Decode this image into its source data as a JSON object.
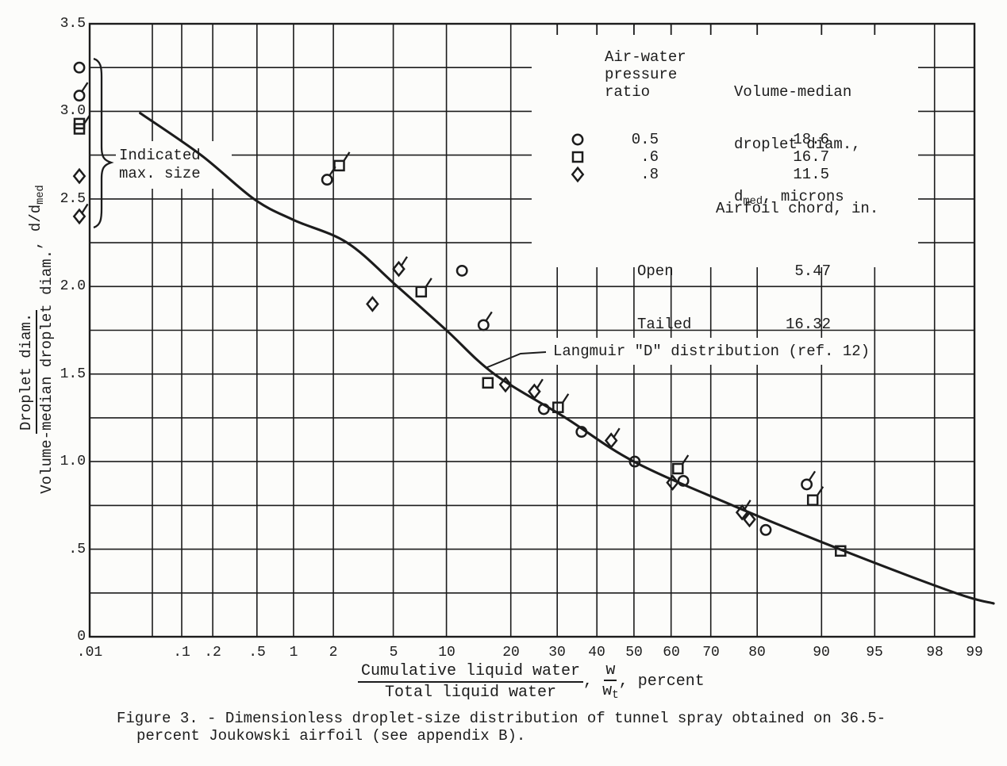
{
  "page": {
    "background": "#fcfcfa",
    "ink": "#1c1c1c"
  },
  "chart_data": {
    "type": "scatter",
    "title": "Figure 3. - Dimensionless droplet-size distribution of tunnel spray obtained on 36.5-percent Joukowski airfoil (see appendix B).",
    "x_axis": {
      "scale": "normal-probability",
      "unit": "percent",
      "min": 0.01,
      "max": 99,
      "label_numerator": "Cumulative liquid water",
      "label_denominator": "Total liquid water",
      "label_symbol_numerator": "w",
      "label_symbol_denominator_base": "w",
      "label_symbol_denominator_sub": "t",
      "label_suffix": ", percent",
      "comma": ",",
      "tick_percents": [
        0.01,
        0.1,
        0.2,
        0.5,
        1,
        2,
        5,
        10,
        20,
        30,
        40,
        50,
        60,
        70,
        80,
        90,
        95,
        98,
        99
      ],
      "tick_labels": [
        ".01",
        ".1",
        ".2",
        ".5",
        "1",
        "2",
        "5",
        "10",
        "20",
        "30",
        "40",
        "50",
        "60",
        "70",
        "80",
        "90",
        "95",
        "98",
        "99"
      ],
      "gridline_percents": [
        0.01,
        0.05,
        0.1,
        0.2,
        0.5,
        1,
        2,
        5,
        10,
        20,
        30,
        40,
        50,
        60,
        70,
        80,
        90,
        95,
        98,
        99
      ]
    },
    "y_axis": {
      "min": 0,
      "max": 3.5,
      "gridline_step": 0.25,
      "label_numerator": "Droplet diam.",
      "label_denominator": "Volume-median droplet diam.",
      "label_suffix_base": ", d/d",
      "label_suffix_sub": "med",
      "tick_values": [
        3.5,
        3.0,
        2.5,
        2.0,
        1.5,
        1.0,
        0.5,
        0
      ],
      "tick_labels": [
        "3.5",
        "3.0",
        "2.5",
        "2.0",
        "1.5",
        "1.0",
        ".5",
        "0"
      ]
    },
    "series": [
      {
        "name": "pressure ratio 0.5, open symbols (5.47 in. chord)",
        "symbol": "circle",
        "tailed": false,
        "points": [
          [
            12,
            2.09
          ],
          [
            26.9,
            1.3
          ],
          [
            36,
            1.17
          ],
          [
            50.2,
            1.0
          ],
          [
            63.2,
            0.89
          ],
          [
            81.6,
            0.61
          ]
        ]
      },
      {
        "name": "pressure ratio 0.5, tailed symbols (16.32 in. chord)",
        "symbol": "circle",
        "tailed": true,
        "points": [
          [
            1.8,
            2.61
          ],
          [
            15.2,
            1.78
          ],
          [
            88.1,
            0.87
          ]
        ]
      },
      {
        "name": "pressure ratio .6, open symbols (5.47 in. chord)",
        "symbol": "square",
        "tailed": false,
        "points": [
          [
            15.9,
            1.45
          ],
          [
            92.1,
            0.49
          ]
        ]
      },
      {
        "name": "pressure ratio .6, tailed symbols (16.32 in. chord)",
        "symbol": "square",
        "tailed": true,
        "points": [
          [
            2.2,
            2.69
          ],
          [
            7.3,
            1.97
          ],
          [
            30.2,
            1.31
          ],
          [
            61.8,
            0.96
          ],
          [
            88.9,
            0.78
          ]
        ]
      },
      {
        "name": "pressure ratio .8, open symbols (5.47 in. chord)",
        "symbol": "diamond",
        "tailed": false,
        "points": [
          [
            3.7,
            1.9
          ],
          [
            19,
            1.44
          ],
          [
            60.4,
            0.88
          ],
          [
            78.5,
            0.67
          ]
        ]
      },
      {
        "name": "pressure ratio .8, tailed symbols (16.32 in. chord)",
        "symbol": "diamond",
        "tailed": true,
        "points": [
          [
            5.4,
            2.1
          ],
          [
            24.8,
            1.4
          ],
          [
            43.8,
            1.12
          ],
          [
            77,
            0.71
          ]
        ]
      }
    ],
    "indicated_max_size_points": [
      {
        "symbol": "circle",
        "tailed": false,
        "value": 3.25
      },
      {
        "symbol": "circle",
        "tailed": true,
        "value": 3.09
      },
      {
        "symbol": "square",
        "tailed": false,
        "value": 2.93
      },
      {
        "symbol": "square",
        "tailed": true,
        "value": 2.9
      },
      {
        "symbol": "diamond",
        "tailed": false,
        "value": 2.63
      },
      {
        "symbol": "diamond",
        "tailed": true,
        "value": 2.4
      }
    ],
    "curve": {
      "name": "Langmuir \"D\" distribution (ref. 12)",
      "points": [
        [
          0.037,
          2.99
        ],
        [
          0.155,
          2.75
        ],
        [
          0.47,
          2.5
        ],
        [
          1.0,
          2.38
        ],
        [
          2.5,
          2.25
        ],
        [
          5.3,
          2.0
        ],
        [
          10,
          1.75
        ],
        [
          17,
          1.5
        ],
        [
          32,
          1.25
        ],
        [
          50,
          1.0
        ],
        [
          75,
          0.75
        ],
        [
          92,
          0.5
        ],
        [
          98.6,
          0.25
        ],
        [
          99.3,
          0.19
        ]
      ]
    }
  },
  "legend": {
    "col1_text": "Air-water\npressure\nratio",
    "col2_line1": "Volume-median",
    "col2_line2": "droplet diam.,",
    "col2_line3_base": "d",
    "col2_line3_sub": "med",
    "col2_line3_rest": ", microns",
    "rows": [
      {
        "symbol": "circle",
        "ratio": "0.5",
        "dmed": "18.6"
      },
      {
        "symbol": "square",
        "ratio": ".6",
        "dmed": "16.7"
      },
      {
        "symbol": "diamond",
        "ratio": ".8",
        "dmed": "11.5"
      }
    ],
    "chord_header": "Airfoil chord, in.",
    "chord_rows": [
      {
        "label": "Open",
        "value": "5.47"
      },
      {
        "label": "Tailed",
        "value": "16.32"
      }
    ]
  },
  "annotations": {
    "max_size_line1": "Indicated",
    "max_size_line2": "max. size",
    "curve_label": "Langmuir \"D\" distribution (ref. 12)"
  },
  "caption": {
    "line1": "Figure 3. - Dimensionless droplet-size distribution of tunnel spray obtained on 36.5-",
    "line2": "percent Joukowski airfoil (see appendix B)."
  }
}
